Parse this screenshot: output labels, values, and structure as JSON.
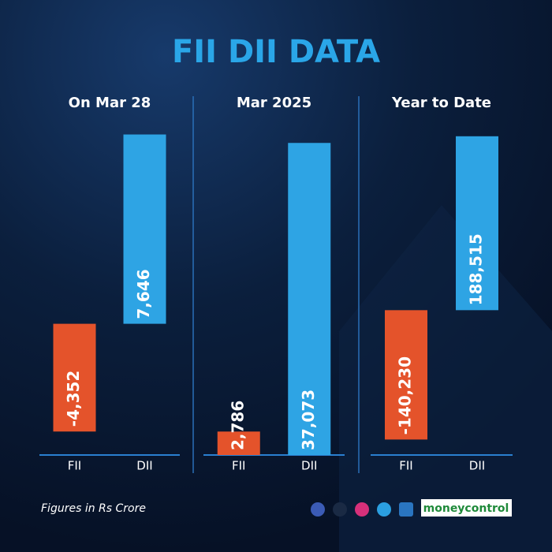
{
  "title": "FII DII DATA",
  "chart_data": [
    {
      "type": "bar",
      "title": "On Mar 28",
      "categories": [
        "FII",
        "DII"
      ],
      "values": [
        -4352,
        7646
      ],
      "value_labels": [
        "-4,352",
        "7,646"
      ],
      "colors": [
        "#e4532b",
        "#2ea4e4"
      ],
      "ylim": [
        -5300,
        8300
      ]
    },
    {
      "type": "bar",
      "title": "Mar 2025",
      "categories": [
        "FII",
        "DII"
      ],
      "values": [
        2786,
        37073
      ],
      "value_labels": [
        "2,786",
        "37,073"
      ],
      "colors": [
        "#e4532b",
        "#2ea4e4"
      ],
      "ylim": [
        0,
        40000
      ]
    },
    {
      "type": "bar",
      "title": "Year to Date",
      "categories": [
        "FII",
        "DII"
      ],
      "values": [
        -140230,
        188515
      ],
      "value_labels": [
        "-140,230",
        "188,515"
      ],
      "colors": [
        "#e4532b",
        "#2ea4e4"
      ],
      "ylim": [
        -157000,
        208000
      ]
    }
  ],
  "footnote": "Figures in Rs Crore",
  "brand": "moneycontrol"
}
